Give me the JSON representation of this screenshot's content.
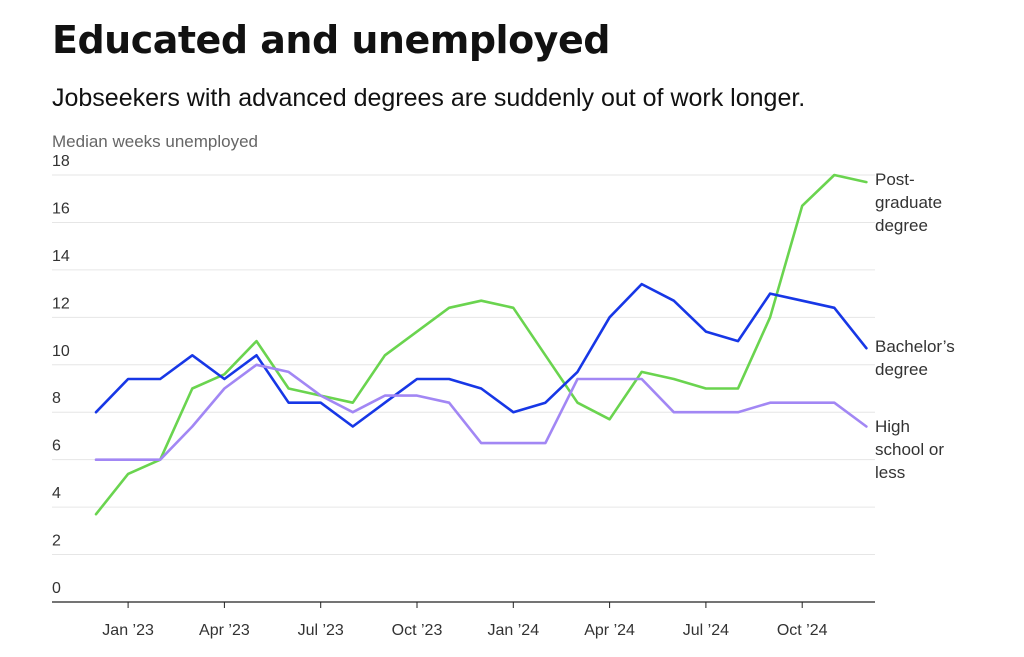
{
  "chart_data": {
    "type": "line",
    "title": "Educated and unemployed",
    "subtitle": "Jobseekers with advanced degrees are suddenly out of work longer.",
    "ylabel": "Median weeks unemployed",
    "ylim": [
      0,
      18
    ],
    "yticks": [
      0,
      2,
      4,
      6,
      8,
      10,
      12,
      14,
      16,
      18
    ],
    "x_months": [
      "Dec 2022",
      "Jan 2023",
      "Feb 2023",
      "Mar 2023",
      "Apr 2023",
      "May 2023",
      "Jun 2023",
      "Jul 2023",
      "Aug 2023",
      "Sep 2023",
      "Oct 2023",
      "Nov 2023",
      "Dec 2023",
      "Jan 2024",
      "Feb 2024",
      "Mar 2024",
      "Apr 2024",
      "May 2024",
      "Jun 2024",
      "Jul 2024",
      "Aug 2024",
      "Sep 2024",
      "Oct 2024",
      "Nov 2024",
      "Dec 2024"
    ],
    "xtick_labels": [
      {
        "label": "Jan ’23",
        "month": "Jan 2023"
      },
      {
        "label": "Apr ’23",
        "month": "Apr 2023"
      },
      {
        "label": "Jul ’23",
        "month": "Jul 2023"
      },
      {
        "label": "Oct ’23",
        "month": "Oct 2023"
      },
      {
        "label": "Jan ’24",
        "month": "Jan 2024"
      },
      {
        "label": "Apr ’24",
        "month": "Apr 2024"
      },
      {
        "label": "Jul ’24",
        "month": "Jul 2024"
      },
      {
        "label": "Oct ’24",
        "month": "Oct 2024"
      }
    ],
    "grid": true,
    "legend": "right",
    "series": [
      {
        "name": "Post-graduate degree",
        "label_lines": [
          "Post-",
          "graduate",
          "degree"
        ],
        "color": "#6ad44f",
        "values": [
          3.7,
          5.4,
          6.0,
          9.0,
          9.6,
          11.0,
          9.0,
          8.7,
          8.4,
          10.4,
          11.4,
          12.4,
          12.7,
          12.4,
          10.4,
          8.4,
          7.7,
          9.7,
          9.4,
          9.0,
          9.0,
          12.0,
          16.7,
          18.0,
          17.7
        ]
      },
      {
        "name": "Bachelor’s degree",
        "label_lines": [
          "Bachelor’s",
          "degree"
        ],
        "color": "#1737e6",
        "values": [
          8.0,
          9.4,
          9.4,
          10.4,
          9.4,
          10.4,
          8.4,
          8.4,
          7.4,
          8.4,
          9.4,
          9.4,
          9.0,
          8.0,
          8.4,
          9.7,
          12.0,
          13.4,
          12.7,
          11.4,
          11.0,
          13.0,
          12.7,
          12.4,
          10.7
        ]
      },
      {
        "name": "High school or less",
        "label_lines": [
          "High",
          "school or",
          "less"
        ],
        "color": "#a287f4",
        "values": [
          6.0,
          6.0,
          6.0,
          7.4,
          9.0,
          10.0,
          9.7,
          8.7,
          8.0,
          8.7,
          8.7,
          8.4,
          6.7,
          6.7,
          6.7,
          9.4,
          9.4,
          9.4,
          8.0,
          8.0,
          8.0,
          8.4,
          8.4,
          8.4,
          7.4
        ]
      }
    ]
  }
}
